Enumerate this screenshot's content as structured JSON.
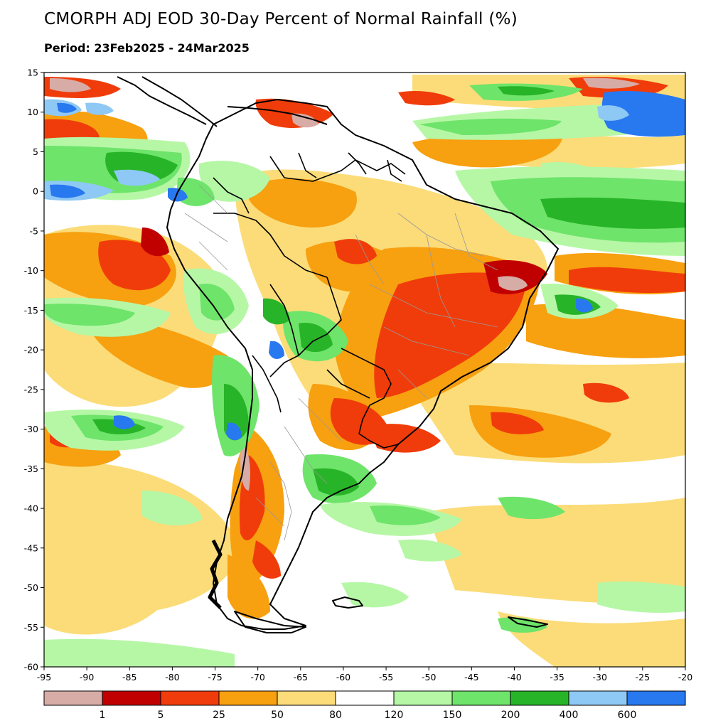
{
  "title": "CMORPH ADJ EOD 30-Day Percent of Normal Rainfall (%)",
  "subtitle": "Period: 23Feb2025 - 24Mar2025",
  "map": {
    "lon_range": [
      -95,
      -20
    ],
    "lat_range": [
      -60,
      15
    ],
    "lon_ticks": [
      -95,
      -90,
      -85,
      -80,
      -75,
      -70,
      -65,
      -60,
      -55,
      -50,
      -45,
      -40,
      -35,
      -30,
      -25,
      -20
    ],
    "lat_ticks": [
      15,
      10,
      5,
      0,
      -5,
      -10,
      -15,
      -20,
      -25,
      -30,
      -35,
      -40,
      -45,
      -50,
      -55,
      -60
    ]
  },
  "colorbar": {
    "colors": [
      "#d8aca6",
      "#c00000",
      "#f03c0a",
      "#f7a010",
      "#fbdc78",
      "#ffffff",
      "#b6f7a6",
      "#6ee46a",
      "#28b428",
      "#8ec8f4",
      "#2878f0"
    ],
    "labels": [
      "1",
      "5",
      "25",
      "50",
      "80",
      "120",
      "150",
      "200",
      "400",
      "600"
    ]
  }
}
